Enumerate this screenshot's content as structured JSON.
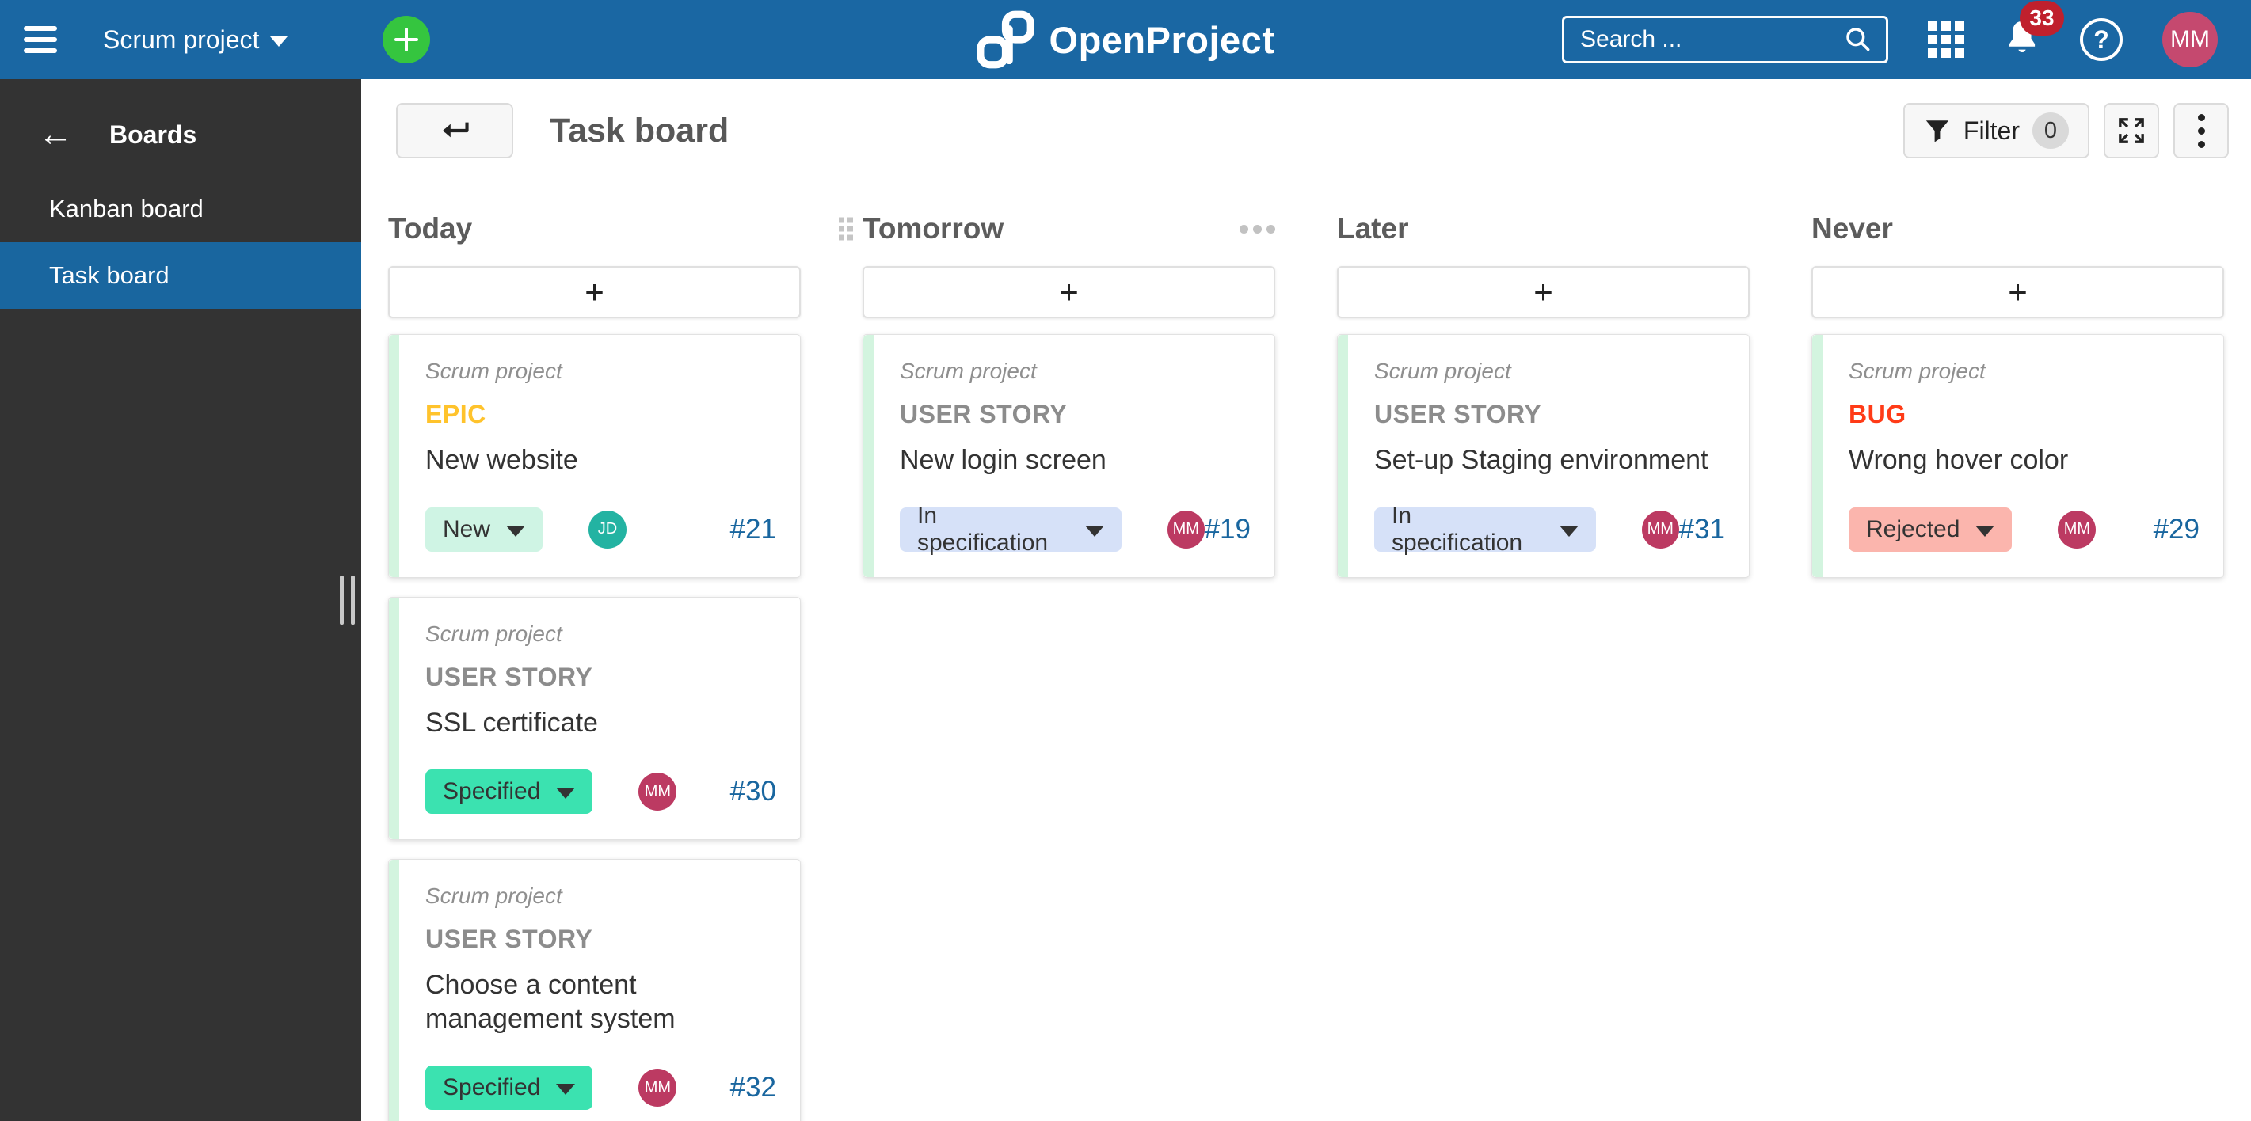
{
  "topbar": {
    "project_selector_label": "Scrum project",
    "logo_text": "OpenProject",
    "search_placeholder": "Search ...",
    "notification_count": "33",
    "avatar_initials": "MM"
  },
  "sidebar": {
    "title": "Boards",
    "items": [
      {
        "label": "Kanban board",
        "active": false
      },
      {
        "label": "Task board",
        "active": true
      }
    ]
  },
  "toolbar": {
    "page_title": "Task board",
    "filter_label": "Filter",
    "filter_count": "0"
  },
  "board": {
    "add_card_label": "+",
    "columns": [
      {
        "title": "Today",
        "has_drag_handle": false,
        "has_menu": false,
        "cards": [
          {
            "project": "Scrum project",
            "type": "EPIC",
            "type_color": "#FFC32C",
            "title": "New website",
            "status": "New",
            "status_bg": "#CFF4E4",
            "assignee": "JD",
            "assignee_bg": "#23B3A2",
            "id": "#21"
          },
          {
            "project": "Scrum project",
            "type": "USER STORY",
            "type_color": "#8C8C8C",
            "title": "SSL certificate",
            "status": "Specified",
            "status_bg": "#3BE2B0",
            "assignee": "MM",
            "assignee_bg": "#BC3A62",
            "id": "#30"
          },
          {
            "project": "Scrum project",
            "type": "USER STORY",
            "type_color": "#8C8C8C",
            "title": "Choose a content management system",
            "status": "Specified",
            "status_bg": "#3BE2B0",
            "assignee": "MM",
            "assignee_bg": "#BC3A62",
            "id": "#32"
          }
        ]
      },
      {
        "title": "Tomorrow",
        "has_drag_handle": true,
        "has_menu": true,
        "cards": [
          {
            "project": "Scrum project",
            "type": "USER STORY",
            "type_color": "#8C8C8C",
            "title": "New login screen",
            "status": "In specification",
            "status_bg": "#D6E1F8",
            "assignee": "MM",
            "assignee_bg": "#BC3A62",
            "id": "#19"
          }
        ]
      },
      {
        "title": "Later",
        "has_drag_handle": false,
        "has_menu": false,
        "cards": [
          {
            "project": "Scrum project",
            "type": "USER STORY",
            "type_color": "#8C8C8C",
            "title": "Set-up Staging environment",
            "status": "In specification",
            "status_bg": "#D6E1F8",
            "assignee": "MM",
            "assignee_bg": "#BC3A62",
            "id": "#31"
          }
        ]
      },
      {
        "title": "Never",
        "has_drag_handle": false,
        "has_menu": false,
        "cards": [
          {
            "project": "Scrum project",
            "type": "BUG",
            "type_color": "#FF3B17",
            "title": "Wrong hover color",
            "status": "Rejected",
            "status_bg": "#FBB5AD",
            "assignee": "MM",
            "assignee_bg": "#BC3A62",
            "id": "#29"
          }
        ]
      }
    ]
  },
  "colors": {
    "topbar_blue": "#1A67A3",
    "sidebar_dark": "#333333",
    "active_item_blue": "#19669F",
    "create_button_green": "#35C53F",
    "notification_red": "#C0202D",
    "card_accent_green": "#D3F4DF",
    "work_package_id_blue": "#19669F"
  }
}
